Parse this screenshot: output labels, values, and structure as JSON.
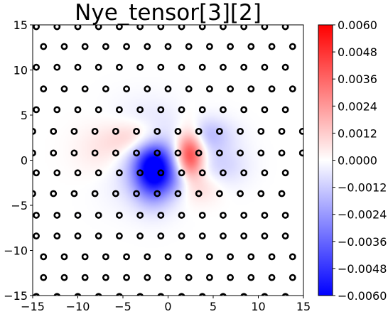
{
  "chart_data": {
    "type": "heatmap",
    "title": "Nye_tensor[3][2]",
    "xlabel": "",
    "ylabel": "",
    "xlim": [
      -15,
      15
    ],
    "ylim": [
      -15,
      15
    ],
    "x_ticks": [
      -15,
      -10,
      -5,
      0,
      5,
      10,
      15
    ],
    "y_ticks": [
      -15,
      -10,
      -5,
      0,
      5,
      10,
      15
    ],
    "x_tick_labels": [
      "−15",
      "−10",
      "−5",
      "0",
      "5",
      "10",
      "15"
    ],
    "y_tick_labels": [
      "−15",
      "−10",
      "−5",
      "0",
      "5",
      "10",
      "15"
    ],
    "colormap": "bwr",
    "colors": {
      "low": "#0000ff",
      "mid": "#ffffff",
      "high": "#ff0000",
      "markers": "#000000"
    },
    "colorbar": {
      "range": [
        -0.006,
        0.006
      ],
      "ticks": [
        -0.006,
        -0.0048,
        -0.0036,
        -0.0024,
        -0.0012,
        0.0,
        0.0012,
        0.0024,
        0.0036,
        0.0048,
        0.006
      ],
      "tick_labels": [
        "−0.0060",
        "−0.0048",
        "−0.0036",
        "−0.0024",
        "−0.0012",
        "0.0000",
        "0.0012",
        "0.0024",
        "0.0036",
        "0.0048",
        "0.0060"
      ]
    },
    "field_lobes": [
      {
        "x": -1.6,
        "y": -1.0,
        "sx": 1.5,
        "sy": 2.3,
        "value": -0.0058
      },
      {
        "x": -2.6,
        "y": 0.6,
        "sx": 3.2,
        "sy": 3.0,
        "value": -0.0022
      },
      {
        "x": 2.4,
        "y": 0.6,
        "sx": 1.1,
        "sy": 2.1,
        "value": 0.0052
      },
      {
        "x": -2.5,
        "y": 2.4,
        "sx": 2.4,
        "sy": 1.4,
        "value": 0.0024
      },
      {
        "x": -6.0,
        "y": 1.0,
        "sx": 2.6,
        "sy": 2.2,
        "value": 0.0013
      },
      {
        "x": 3.8,
        "y": 2.8,
        "sx": 2.2,
        "sy": 1.3,
        "value": -0.0018
      },
      {
        "x": 1.8,
        "y": -2.2,
        "sx": 1.6,
        "sy": 1.3,
        "value": -0.0016
      },
      {
        "x": 3.5,
        "y": -2.8,
        "sx": 1.6,
        "sy": 1.3,
        "value": 0.0012
      },
      {
        "x": 6.0,
        "y": -0.6,
        "sx": 2.0,
        "sy": 1.6,
        "value": -0.001
      }
    ],
    "atom_rows": [
      {
        "y": 14.8,
        "x_start": -14.6,
        "step": 2.3,
        "count": 13
      },
      {
        "y": 12.6,
        "x_start": -13.8,
        "step": 2.3,
        "count": 13
      },
      {
        "y": 10.3,
        "x_start": -14.6,
        "step": 2.3,
        "count": 13
      },
      {
        "y": 7.9,
        "x_start": -13.8,
        "step": 2.3,
        "count": 13
      },
      {
        "y": 5.6,
        "x_start": -14.6,
        "step": 2.3,
        "count": 13
      },
      {
        "y": 3.2,
        "x_start": -15.0,
        "step": 2.3,
        "count": 14
      },
      {
        "y": 0.8,
        "x_start": -15.0,
        "step": 2.3,
        "count": 14
      },
      {
        "y": -1.4,
        "x_start": -14.6,
        "step": 2.3,
        "count": 13
      },
      {
        "y": -3.7,
        "x_start": -15.0,
        "step": 2.3,
        "count": 13
      },
      {
        "y": -6.1,
        "x_start": -14.6,
        "step": 2.3,
        "count": 13
      },
      {
        "y": -8.4,
        "x_start": -14.6,
        "step": 2.3,
        "count": 13
      },
      {
        "y": -10.7,
        "x_start": -13.8,
        "step": 2.3,
        "count": 13
      },
      {
        "y": -13.0,
        "x_start": -13.8,
        "step": 2.3,
        "count": 13
      },
      {
        "y": -15.1,
        "x_start": -14.6,
        "step": 2.3,
        "count": 13
      }
    ]
  }
}
